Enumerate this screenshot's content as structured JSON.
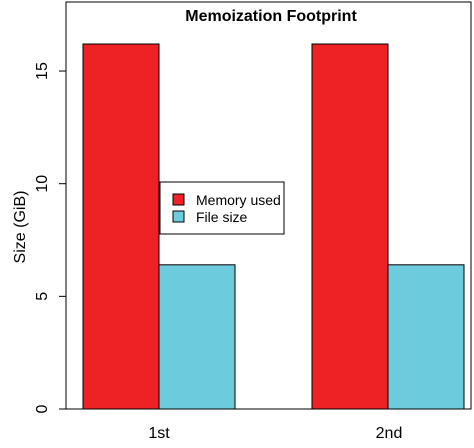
{
  "chart_data": {
    "type": "bar",
    "title": "Memoization Footprint",
    "xlabel": "",
    "ylabel": "Size (GiB)",
    "categories": [
      "1st",
      "2nd"
    ],
    "series": [
      {
        "name": "Memory used",
        "values": [
          16.2,
          16.2
        ],
        "color": "#ee2124"
      },
      {
        "name": "File size",
        "values": [
          6.4,
          6.4
        ],
        "color": "#6dcbde"
      }
    ],
    "ylim": [
      0,
      16.2
    ],
    "yticks": [
      0,
      5,
      10,
      15
    ],
    "ytick_labels": [
      "0",
      "5",
      "10",
      "15"
    ],
    "grid": false,
    "legend_position": "center-left"
  }
}
